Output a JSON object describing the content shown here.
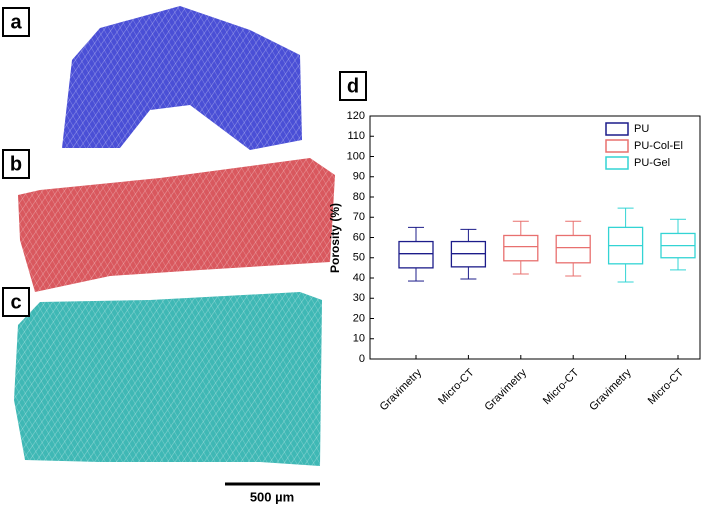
{
  "panels": {
    "a": "a",
    "b": "b",
    "c": "c",
    "d": "d",
    "scale_bar": "500 µm"
  },
  "chart_data": {
    "type": "box",
    "ylabel": "Porosity (%)",
    "categories": [
      "Gravimetry",
      "Micro-CT",
      "Gravimetry",
      "Micro-CT",
      "Gravimetry",
      "Micro-CT"
    ],
    "ylim": [
      0,
      120
    ],
    "yticks": [
      0,
      10,
      20,
      30,
      40,
      50,
      60,
      70,
      80,
      90,
      100,
      110,
      120
    ],
    "legend": "top-right",
    "series": [
      {
        "name": "PU",
        "color": "#1c1c8a",
        "min": [
          38.5,
          39.5,
          null,
          null,
          null,
          null
        ],
        "q1": [
          45,
          45.5,
          null,
          null,
          null,
          null
        ],
        "median": [
          52,
          52,
          null,
          null,
          null,
          null
        ],
        "q3": [
          58,
          58,
          null,
          null,
          null,
          null
        ],
        "max": [
          65,
          64,
          null,
          null,
          null,
          null
        ]
      },
      {
        "name": "PU-Col-El",
        "color": "#e8706f",
        "min": [
          null,
          null,
          42,
          41,
          null,
          null
        ],
        "q1": [
          null,
          null,
          48.5,
          47.5,
          null,
          null
        ],
        "median": [
          null,
          null,
          55.5,
          55,
          null,
          null
        ],
        "q3": [
          null,
          null,
          61,
          61,
          null,
          null
        ],
        "max": [
          null,
          null,
          68,
          68,
          null,
          null
        ]
      },
      {
        "name": "PU-Gel",
        "color": "#33d4d4",
        "min": [
          null,
          null,
          null,
          null,
          38,
          44
        ],
        "q1": [
          null,
          null,
          null,
          null,
          47,
          50
        ],
        "median": [
          null,
          null,
          null,
          null,
          56,
          56
        ],
        "q3": [
          null,
          null,
          null,
          null,
          65,
          62
        ],
        "max": [
          null,
          null,
          null,
          null,
          74.5,
          69
        ]
      }
    ]
  }
}
